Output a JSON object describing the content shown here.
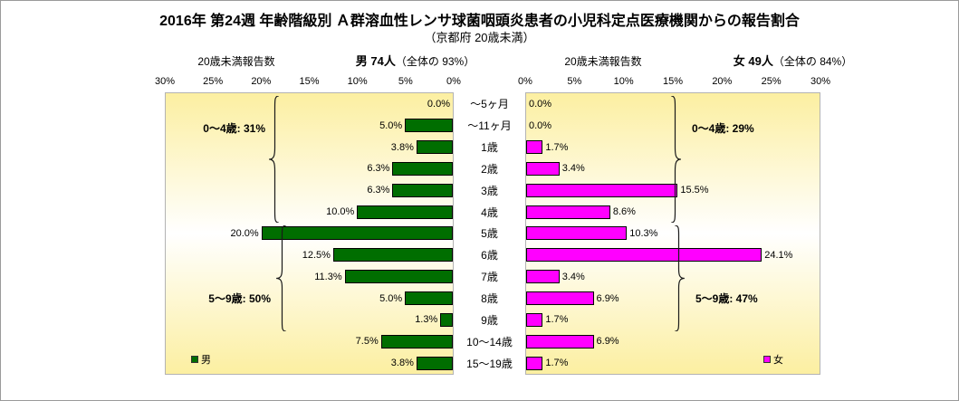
{
  "title": "2016年 第24週 年齢階級別 Ａ群溶血性レンサ球菌咽頭炎患者の小児科定点医療機関からの報告割合",
  "subtitle": "（京都府 20歳未満）",
  "male": {
    "header_label": "20歳未満報告数",
    "summary_bold": "男  74人",
    "summary_rest": "（全体の  93%）"
  },
  "female": {
    "header_label": "20歳未満報告数",
    "summary_bold": "女  49人",
    "summary_rest": "（全体の  84%）"
  },
  "chart_data": {
    "type": "bar",
    "orientation": "horizontal-back-to-back",
    "categories": [
      "～5ヶ月",
      "～11ヶ月",
      "1歳",
      "2歳",
      "3歳",
      "4歳",
      "5歳",
      "6歳",
      "7歳",
      "8歳",
      "9歳",
      "10～14歳",
      "15～19歳"
    ],
    "series": [
      {
        "name": "男",
        "color": "#006e00",
        "values": [
          0.0,
          5.0,
          3.8,
          6.3,
          6.3,
          10.0,
          20.0,
          12.5,
          11.3,
          5.0,
          1.3,
          7.5,
          3.8
        ]
      },
      {
        "name": "女",
        "color": "#ff00ff",
        "values": [
          0.0,
          0.0,
          1.7,
          3.4,
          15.5,
          8.6,
          10.3,
          24.1,
          3.4,
          6.9,
          1.7,
          6.9,
          1.7
        ]
      }
    ],
    "xlim": [
      0,
      30
    ],
    "xlabel": "",
    "ylabel": "",
    "value_suffix": "%",
    "axis": {
      "male_ticks": [
        "30%",
        "25%",
        "20%",
        "15%",
        "10%",
        "5%",
        "0%"
      ],
      "female_ticks": [
        "0%",
        "5%",
        "10%",
        "15%",
        "20%",
        "25%",
        "30%"
      ]
    },
    "annotations": {
      "male_0_4": "0～4歳: 31%",
      "male_5_9": "5～9歳: 50%",
      "female_0_4": "0～4歳: 29%",
      "female_5_9": "5～9歳: 47%"
    },
    "legend_position": "inside-bottom-corners",
    "grid": false
  }
}
